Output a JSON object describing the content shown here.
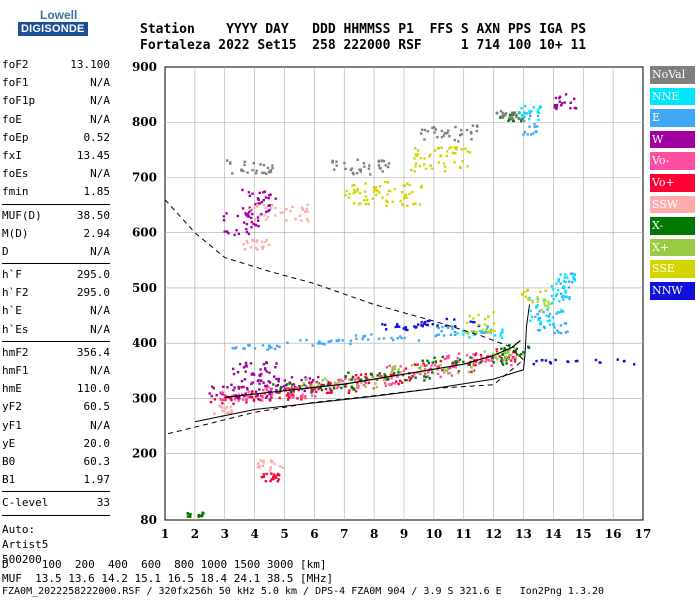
{
  "header": {
    "labels": "Station    YYYY DAY   DDD HHMMSS P1  FFS S AXN PPS IGA PS",
    "values": "Fortaleza 2022 Set15  258 222000 RSF     1 714 100 10+ 11"
  },
  "logo": {
    "top": "Lowell",
    "bottom": "DIGISONDE"
  },
  "params": {
    "g1": [
      [
        "foF2",
        "13.100"
      ],
      [
        "foF1",
        "N/A"
      ],
      [
        "foF1p",
        "N/A"
      ],
      [
        "foE",
        "N/A"
      ],
      [
        "foEp",
        "0.52"
      ],
      [
        "fxI",
        "13.45"
      ],
      [
        "foEs",
        "N/A"
      ],
      [
        "fmin",
        "1.85"
      ]
    ],
    "g2": [
      [
        "MUF(D)",
        "38.50"
      ],
      [
        "M(D)",
        "2.94"
      ],
      [
        "D",
        "N/A"
      ]
    ],
    "g3": [
      [
        "h`F",
        "295.0"
      ],
      [
        "h`F2",
        "295.0"
      ],
      [
        "h`E",
        "N/A"
      ],
      [
        "h`Es",
        "N/A"
      ]
    ],
    "g4": [
      [
        "hmF2",
        "356.4"
      ],
      [
        "hmF1",
        "N/A"
      ],
      [
        "hmE",
        "110.0"
      ],
      [
        "yF2",
        "60.5"
      ],
      [
        "yF1",
        "N/A"
      ],
      [
        "yE",
        "20.0"
      ],
      [
        "B0",
        "60.3"
      ],
      [
        "B1",
        "1.97"
      ]
    ],
    "g5": [
      [
        "C-level",
        "33"
      ]
    ],
    "auto": [
      "Auto:",
      "Artist5",
      "500200"
    ]
  },
  "legend": [
    {
      "label": "NoVal",
      "color": "#7f7f7f"
    },
    {
      "label": "NNE",
      "color": "#00e5ff"
    },
    {
      "label": "E",
      "color": "#3fa9f5"
    },
    {
      "label": "W",
      "color": "#a0009f"
    },
    {
      "label": "Vo-",
      "color": "#ff4fa0"
    },
    {
      "label": "Vo+",
      "color": "#ff0033"
    },
    {
      "label": "SSW",
      "color": "#ffaaaa"
    },
    {
      "label": "X-",
      "color": "#007700"
    },
    {
      "label": "X+",
      "color": "#99cc44"
    },
    {
      "label": "SSE",
      "color": "#d4d400"
    },
    {
      "label": "NNW",
      "color": "#1010dd"
    }
  ],
  "footer": {
    "d_line": "D     100  200  400  600  800 1000 1500 3000 [km]",
    "muf_line": "MUF  13.5 13.6 14.2 15.1 16.5 18.4 24.1 38.5 [MHz]",
    "file_line": "FZA0M_2022258222000.RSF / 320fx256h 50 kHz 5.0 km / DPS-4 FZA0M 904 / 3.9 S 321.6 E   Ion2Png 1.3.20"
  },
  "chart_data": {
    "type": "scatter",
    "title": "",
    "xlabel": "",
    "ylabel": "",
    "xlim": [
      1,
      17
    ],
    "ylim": [
      80,
      900
    ],
    "x_ticks": [
      1,
      2,
      3,
      4,
      5,
      6,
      7,
      8,
      9,
      10,
      11,
      12,
      13,
      14,
      15,
      16,
      17
    ],
    "y_ticks": [
      80,
      200,
      300,
      400,
      500,
      600,
      700,
      800,
      900
    ],
    "grid": true,
    "series": [
      {
        "name": "W",
        "color": "#a0009f",
        "clusters": [
          [
            3.0,
            312,
            0.7,
            15
          ],
          [
            4.2,
            318,
            0.8,
            18
          ],
          [
            5.5,
            325,
            1.0,
            16
          ],
          [
            4.0,
            350,
            0.8,
            18
          ],
          [
            4.1,
            655,
            0.6,
            25
          ],
          [
            3.5,
            618,
            0.6,
            20
          ],
          [
            14.4,
            840,
            0.4,
            15
          ]
        ]
      },
      {
        "name": "Vo+",
        "color": "#ff0033",
        "clusters": [
          [
            3.2,
            300,
            0.8,
            8
          ],
          [
            4.6,
            308,
            1.0,
            10
          ],
          [
            6.3,
            322,
            1.2,
            10
          ],
          [
            8.2,
            338,
            1.2,
            10
          ],
          [
            10.2,
            360,
            1.2,
            10
          ],
          [
            12.0,
            380,
            0.8,
            12
          ],
          [
            4.5,
            160,
            0.3,
            8
          ]
        ]
      },
      {
        "name": "Vo-",
        "color": "#ff4fa0",
        "clusters": [
          [
            3.6,
            305,
            0.8,
            10
          ],
          [
            5.2,
            315,
            1.0,
            12
          ],
          [
            7.5,
            332,
            1.2,
            12
          ],
          [
            9.5,
            352,
            1.2,
            12
          ],
          [
            11.5,
            372,
            1.2,
            12
          ]
        ]
      },
      {
        "name": "X-",
        "color": "#007700",
        "clusters": [
          [
            6.0,
            322,
            1.5,
            8
          ],
          [
            8.5,
            342,
            1.5,
            8
          ],
          [
            11.0,
            370,
            1.5,
            8
          ],
          [
            12.7,
            390,
            0.5,
            10
          ],
          [
            12.5,
            812,
            0.5,
            8
          ],
          [
            2.0,
            92,
            0.3,
            4
          ]
        ]
      },
      {
        "name": "X+",
        "color": "#99cc44",
        "clusters": [
          [
            7.0,
            330,
            1.5,
            8
          ],
          [
            9.8,
            355,
            1.5,
            8
          ],
          [
            12.1,
            383,
            0.6,
            10
          ]
        ]
      },
      {
        "name": "E",
        "color": "#3fa9f5",
        "clusters": [
          [
            4.0,
            395,
            0.8,
            5
          ],
          [
            6.0,
            403,
            1.2,
            6
          ],
          [
            8.2,
            413,
            1.3,
            6
          ],
          [
            10.8,
            425,
            1.0,
            10
          ],
          [
            13.9,
            440,
            0.6,
            20
          ],
          [
            14.4,
            505,
            0.3,
            25
          ],
          [
            13.2,
            800,
            0.3,
            20
          ]
        ]
      },
      {
        "name": "NNE",
        "color": "#00e5ff",
        "clusters": [
          [
            11.5,
            420,
            0.8,
            10
          ],
          [
            13.7,
            460,
            0.6,
            25
          ],
          [
            14.3,
            500,
            0.4,
            30
          ],
          [
            13.2,
            820,
            0.4,
            15
          ]
        ]
      },
      {
        "name": "NNW",
        "color": "#1010dd",
        "clusters": [
          [
            9.0,
            432,
            0.8,
            6
          ],
          [
            10.5,
            438,
            1.0,
            8
          ],
          [
            15.0,
            368,
            1.7,
            5
          ]
        ]
      },
      {
        "name": "SSE",
        "color": "#d4d400",
        "clusters": [
          [
            8.3,
            672,
            1.3,
            22
          ],
          [
            10.2,
            735,
            1.0,
            22
          ],
          [
            13.4,
            480,
            0.5,
            20
          ],
          [
            11.5,
            440,
            0.5,
            20
          ]
        ]
      },
      {
        "name": "SSW",
        "color": "#ffaaaa",
        "clusters": [
          [
            4.8,
            638,
            1.0,
            15
          ],
          [
            4.0,
            580,
            0.5,
            10
          ],
          [
            4.5,
            180,
            0.5,
            10
          ],
          [
            2.8,
            280,
            0.4,
            10
          ]
        ]
      },
      {
        "name": "NoVal",
        "color": "#7f7f7f",
        "clusters": [
          [
            3.8,
            722,
            0.8,
            15
          ],
          [
            7.5,
            720,
            1.0,
            15
          ],
          [
            10.5,
            782,
            1.0,
            15
          ],
          [
            12.4,
            815,
            0.5,
            8
          ]
        ]
      }
    ],
    "profile_dashed": [
      [
        1.0,
        660
      ],
      [
        2.0,
        600
      ],
      [
        3.0,
        555
      ],
      [
        4.5,
        530
      ],
      [
        6.0,
        508
      ],
      [
        8.0,
        470
      ],
      [
        10.0,
        440
      ],
      [
        11.5,
        415
      ],
      [
        12.5,
        395
      ],
      [
        13.0,
        370
      ],
      [
        12.0,
        325
      ],
      [
        10.0,
        318
      ],
      [
        8.0,
        305
      ],
      [
        6.0,
        293
      ],
      [
        4.0,
        275
      ],
      [
        2.0,
        248
      ],
      [
        1.0,
        235
      ]
    ],
    "profile_solid": [
      [
        2.0,
        258
      ],
      [
        4.0,
        280
      ],
      [
        6.0,
        292
      ],
      [
        8.0,
        304
      ],
      [
        10.0,
        318
      ],
      [
        12.0,
        335
      ],
      [
        13.0,
        352
      ],
      [
        13.05,
        380
      ],
      [
        13.1,
        430
      ],
      [
        13.2,
        470
      ]
    ],
    "trace": [
      [
        3.0,
        302
      ],
      [
        5.0,
        314
      ],
      [
        7.0,
        326
      ],
      [
        9.0,
        344
      ],
      [
        11.0,
        362
      ],
      [
        12.0,
        378
      ],
      [
        12.6,
        392
      ],
      [
        12.9,
        405
      ]
    ]
  }
}
